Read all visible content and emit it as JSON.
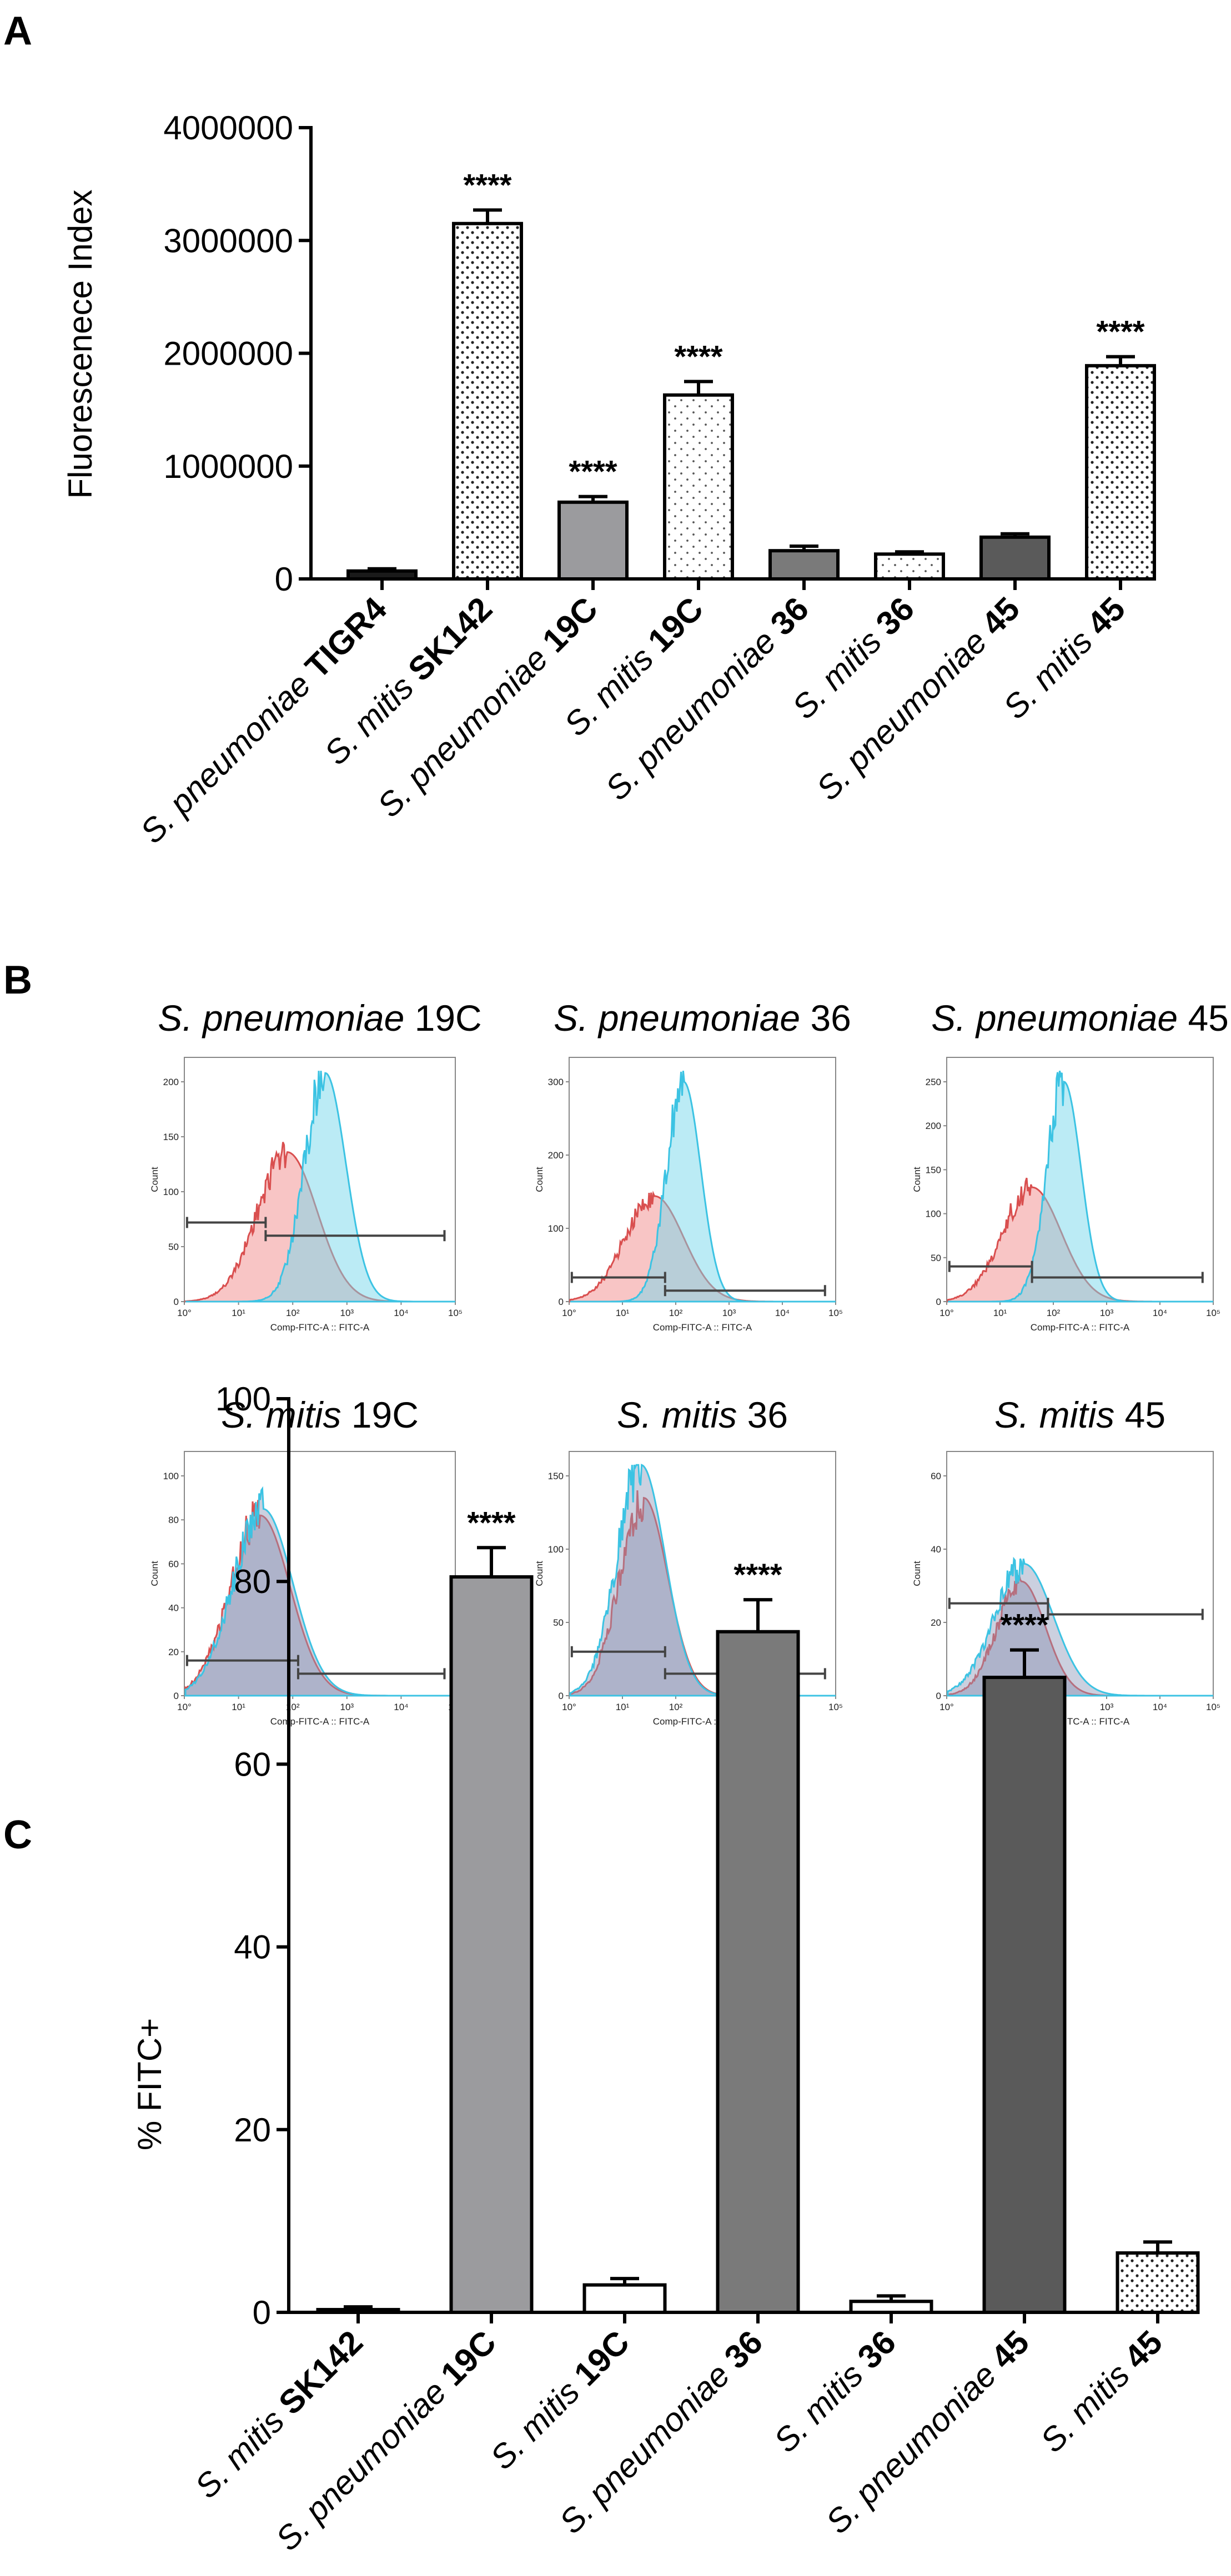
{
  "panel_labels": {
    "a": "A",
    "b": "B",
    "c": "C"
  },
  "chart_data": [
    {
      "id": "A",
      "type": "bar",
      "ylabel": "Fluorescenece Index",
      "ylim": [
        0,
        4000000
      ],
      "yticks": [
        "0",
        "1000000",
        "2000000",
        "3000000",
        "4000000"
      ],
      "categories": [
        {
          "italic": "S. pneumoniae",
          "bold": "TIGR4"
        },
        {
          "italic": "S. mitis",
          "bold": "SK142"
        },
        {
          "italic": "S. pneumoniae",
          "bold": "19C"
        },
        {
          "italic": "S. mitis",
          "bold": "19C"
        },
        {
          "italic": "S. pneumoniae",
          "bold": "36"
        },
        {
          "italic": "S. mitis",
          "bold": "36"
        },
        {
          "italic": "S. pneumoniae",
          "bold": "45"
        },
        {
          "italic": "S. mitis",
          "bold": "45"
        }
      ],
      "values": [
        70000,
        3150000,
        680000,
        1630000,
        250000,
        220000,
        370000,
        1890000
      ],
      "errors": [
        20000,
        120000,
        50000,
        120000,
        40000,
        20000,
        30000,
        80000
      ],
      "fills": [
        "#1a1a1a",
        "dots",
        "#9b9b9e",
        "dots-sparse",
        "#7a7a7a",
        "dots-sparse",
        "#5a5a5a",
        "dots"
      ],
      "significance": [
        "",
        "****",
        "****",
        "****",
        "",
        "",
        "",
        "****"
      ]
    },
    {
      "id": "B",
      "type": "histogram-grid",
      "xlabel": "Comp-FITC-A :: FITC-A",
      "ylabel": "Count",
      "xticks": [
        "10°",
        "10¹",
        "10²",
        "10³",
        "10⁴",
        "10⁵"
      ],
      "panels": [
        {
          "italic": "S. pneumoniae",
          "suffix": "19C",
          "ymax": 200,
          "yticks": [
            "0",
            "50",
            "100",
            "150",
            "200"
          ]
        },
        {
          "italic": "S. pneumoniae",
          "suffix": "36",
          "ymax": 300,
          "yticks": [
            "0",
            "100",
            "200",
            "300"
          ]
        },
        {
          "italic": "S. pneumoniae",
          "suffix": "45",
          "ymax": 250,
          "yticks": [
            "0",
            "50",
            "100",
            "150",
            "200",
            "250"
          ]
        },
        {
          "italic": "S. mitis",
          "suffix": "19C",
          "ymax": 100,
          "yticks": [
            "0",
            "20",
            "40",
            "60",
            "80",
            "100"
          ]
        },
        {
          "italic": "S. mitis",
          "suffix": "36",
          "ymax": 150,
          "yticks": [
            "0",
            "50",
            "100",
            "150"
          ]
        },
        {
          "italic": "S. mitis",
          "suffix": "45",
          "ymax": 60,
          "yticks": [
            "0",
            "20",
            "40",
            "60"
          ]
        }
      ]
    },
    {
      "id": "C",
      "type": "bar",
      "ylabel": "% FITC+",
      "ylim": [
        0,
        100
      ],
      "yticks": [
        "0",
        "20",
        "40",
        "60",
        "80",
        "100"
      ],
      "categories": [
        {
          "italic": "S. mitis",
          "bold": "SK142"
        },
        {
          "italic": "S. pneumoniae",
          "bold": "19C"
        },
        {
          "italic": "S. mitis",
          "bold": "19C"
        },
        {
          "italic": "S. pneumoniae",
          "bold": "36"
        },
        {
          "italic": "S. mitis",
          "bold": "36"
        },
        {
          "italic": "S. pneumoniae",
          "bold": "45"
        },
        {
          "italic": "S. mitis",
          "bold": "45"
        }
      ],
      "values": [
        0.3,
        80.5,
        3,
        74.5,
        1.2,
        69.5,
        6.5
      ],
      "errors": [
        0.3,
        3.2,
        0.7,
        3.5,
        0.6,
        3,
        1.2
      ],
      "fills": [
        "#ffffff",
        "#9b9b9e",
        "#ffffff",
        "#7a7a7a",
        "#ffffff",
        "#5a5a5a",
        "dots"
      ],
      "significance": [
        "",
        "****",
        "",
        "****",
        "",
        "****",
        ""
      ]
    }
  ]
}
